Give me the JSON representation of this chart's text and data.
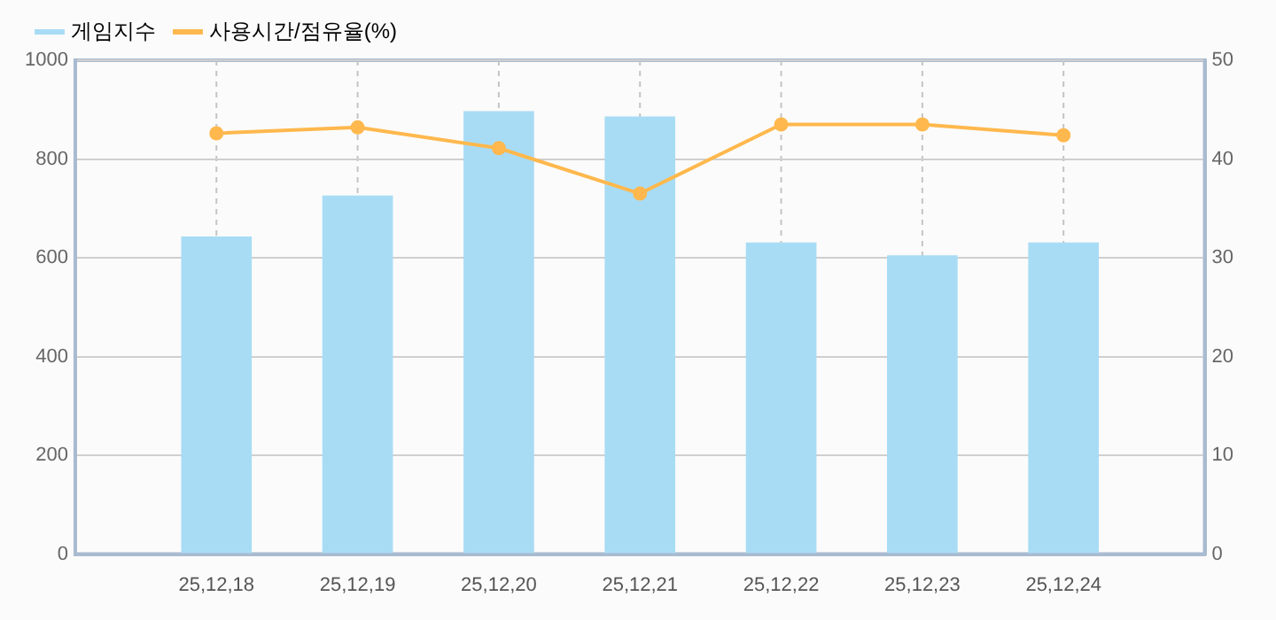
{
  "chart_data": {
    "type": "bar",
    "categories": [
      null,
      "25,12,18",
      "25,12,19",
      "25,12,20",
      "25,12,21",
      "25,12,22",
      "25,12,23",
      "25,12,24",
      null
    ],
    "series": [
      {
        "name": "게임지수",
        "color": "#a8dcf5",
        "values": [
          null,
          643,
          726,
          897,
          886,
          631,
          605,
          631,
          null
        ]
      },
      {
        "name": "사용시간/점유율(%)",
        "type": "line",
        "axis": "y2",
        "color": "#ffb84d",
        "values": [
          null,
          42.6,
          43.2,
          41.1,
          36.5,
          43.5,
          43.5,
          42.4,
          null
        ]
      }
    ],
    "ylim": [
      0,
      1000
    ],
    "yticks": [
      0,
      200,
      400,
      600,
      800,
      1000
    ],
    "y2lim": [
      0,
      50
    ],
    "y2ticks": [
      0,
      10,
      20,
      30,
      40,
      50
    ],
    "grid": true,
    "legend": "top left",
    "marker": "circle"
  }
}
